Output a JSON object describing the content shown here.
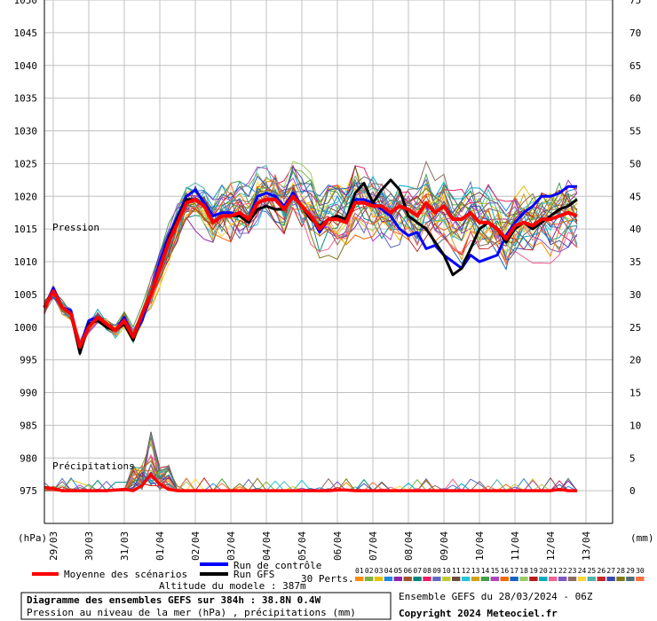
{
  "chart_data": {
    "type": "line",
    "left_axis_unit": "(hPa)",
    "right_axis_unit": "(mm)",
    "left_ticks": [
      1050,
      1045,
      1040,
      1035,
      1030,
      1025,
      1020,
      1015,
      1010,
      1005,
      1000,
      995,
      990,
      985,
      980,
      975
    ],
    "right_ticks": [
      75,
      70,
      65,
      60,
      55,
      50,
      45,
      40,
      35,
      30,
      25,
      20,
      15,
      10,
      5,
      0
    ],
    "left_ylim": [
      970,
      1050
    ],
    "right_ylim": [
      -5,
      75
    ],
    "date_ticks": [
      {
        "label": "29/03",
        "t": 6
      },
      {
        "label": "30/03",
        "t": 30
      },
      {
        "label": "31/03",
        "t": 54
      },
      {
        "label": "01/04",
        "t": 78
      },
      {
        "label": "02/04",
        "t": 102
      },
      {
        "label": "03/04",
        "t": 126
      },
      {
        "label": "04/04",
        "t": 150
      },
      {
        "label": "05/04",
        "t": 174
      },
      {
        "label": "06/04",
        "t": 198
      },
      {
        "label": "07/04",
        "t": 222
      },
      {
        "label": "08/04",
        "t": 246
      },
      {
        "label": "09/04",
        "t": 270
      },
      {
        "label": "10/04",
        "t": 294
      },
      {
        "label": "11/04",
        "t": 318
      },
      {
        "label": "12/04",
        "t": 342
      },
      {
        "label": "13/04",
        "t": 366
      }
    ],
    "t_range": [
      0,
      384
    ],
    "step_hours": 6,
    "panel_labels": {
      "pressure": "Pression",
      "precip": "Précipitations"
    },
    "series": [
      {
        "name": "Moyenne des scénarios",
        "color": "#ff0000",
        "values": [
          1003,
          1005.5,
          1003,
          1002,
          997,
          1000,
          1001.5,
          1000.5,
          999.5,
          1001,
          998.5,
          1002,
          1005,
          1009,
          1013,
          1016,
          1019,
          1019.5,
          1018.5,
          1016,
          1017,
          1017,
          1017.5,
          1016.5,
          1019,
          1019.5,
          1019.5,
          1018,
          1020,
          1018.5,
          1017,
          1015,
          1016.5,
          1016.5,
          1016,
          1019,
          1019,
          1018.5,
          1018.5,
          1017.5,
          1018.5,
          1018,
          1017,
          1019,
          1017.5,
          1018.5,
          1016.5,
          1016.5,
          1017.5,
          1016,
          1016,
          1015,
          1013.5,
          1015.5,
          1016,
          1015.5,
          1016.5,
          1016.5,
          1017,
          1017.5,
          1017
        ]
      },
      {
        "name": "Run de contrôle",
        "color": "#0000ff",
        "values": [
          1003,
          1006,
          1003,
          1002.5,
          997,
          1001,
          1001.5,
          1000.5,
          999.5,
          1001.5,
          998.5,
          1001,
          1005,
          1010,
          1014,
          1017,
          1020,
          1021,
          1019,
          1017,
          1017.5,
          1017.5,
          1017,
          1016.5,
          1020,
          1020.5,
          1020,
          1018.5,
          1020.5,
          1018.5,
          1017,
          1014.5,
          1016.5,
          1017,
          1016,
          1019.5,
          1019.5,
          1019,
          1018,
          1017,
          1015,
          1014,
          1014.5,
          1012,
          1012.5,
          1011,
          1010,
          1009,
          1011,
          1010,
          1010.5,
          1011,
          1014,
          1016,
          1017.5,
          1018.5,
          1020,
          1020,
          1020.5,
          1021.5,
          1021.5
        ]
      },
      {
        "name": "Run GFS",
        "color": "#000000",
        "values": [
          1003,
          1005.5,
          1003,
          1002,
          996,
          1000.5,
          1001,
          1000,
          999.5,
          1000.5,
          998,
          1002,
          1005,
          1009,
          1013.5,
          1016.5,
          1019.5,
          1019.5,
          1018.5,
          1016,
          1017,
          1017,
          1017,
          1016,
          1018,
          1018.5,
          1018,
          1018,
          1020,
          1018.5,
          1016.5,
          1015.5,
          1016.5,
          1017,
          1016.5,
          1020.5,
          1022,
          1019,
          1021,
          1022.5,
          1021,
          1017,
          1016,
          1015,
          1013,
          1011,
          1008,
          1009,
          1012,
          1015,
          1016,
          1015,
          1013,
          1015,
          1016,
          1015,
          1016,
          1017,
          1018,
          1018.5,
          1019.5
        ]
      }
    ],
    "precip_series": [
      {
        "name": "Moyenne des scénarios",
        "color": "#ff0000",
        "values": [
          0.5,
          0.3,
          0,
          0,
          0,
          0,
          0,
          0,
          0.1,
          0.2,
          0,
          0.8,
          2.5,
          1,
          0.2,
          0,
          0,
          0,
          0,
          0,
          0,
          0,
          0,
          0,
          0,
          0,
          0,
          0,
          0,
          0,
          0,
          0,
          0,
          0.1,
          0.1,
          0,
          0,
          0,
          0,
          0,
          0,
          0,
          0,
          0,
          0,
          0,
          0,
          0,
          0,
          0,
          0,
          0,
          0,
          0,
          0,
          0,
          0,
          0,
          0.2,
          0,
          0
        ]
      }
    ],
    "legend": {
      "mean_label": "Moyenne des scénarios",
      "control_label": "Run de contrôle",
      "gfs_label": "Run GFS",
      "perts_label": "30 Perts.",
      "pert_numbers": [
        "01",
        "02",
        "03",
        "04",
        "05",
        "06",
        "07",
        "08",
        "09",
        "10",
        "11",
        "12",
        "13",
        "14",
        "15",
        "16",
        "17",
        "18",
        "19",
        "20",
        "21",
        "22",
        "23",
        "24",
        "25",
        "26",
        "27",
        "28",
        "29",
        "30"
      ],
      "pert_colors": [
        "#ff8c00",
        "#7cb342",
        "#e6c300",
        "#1e88e5",
        "#8e24aa",
        "#a0522d",
        "#00897b",
        "#e91e63",
        "#5c6bc0",
        "#c0ca33",
        "#6d4c41",
        "#26c6da",
        "#d4a017",
        "#43a047",
        "#ab47bc",
        "#ef6c00",
        "#1565c0",
        "#9ccc65",
        "#b71c1c",
        "#00acc1",
        "#f06292",
        "#7e57c2",
        "#8d6e63",
        "#fdd835",
        "#4db6ac",
        "#c62828",
        "#3949ab",
        "#827717",
        "#546e7a",
        "#ff7043"
      ]
    },
    "footer": {
      "altitude": "Altitude du modele : 387m",
      "title": "Diagramme des ensembles GEFS sur 384h : 38.8N 0.4W",
      "subtitle": "Pression au niveau de la mer (hPa) , précipitations (mm)",
      "run_info": "Ensemble GEFS du 28/03/2024 - 06Z",
      "copyright": "Copyright 2024 Meteociel.fr"
    }
  }
}
